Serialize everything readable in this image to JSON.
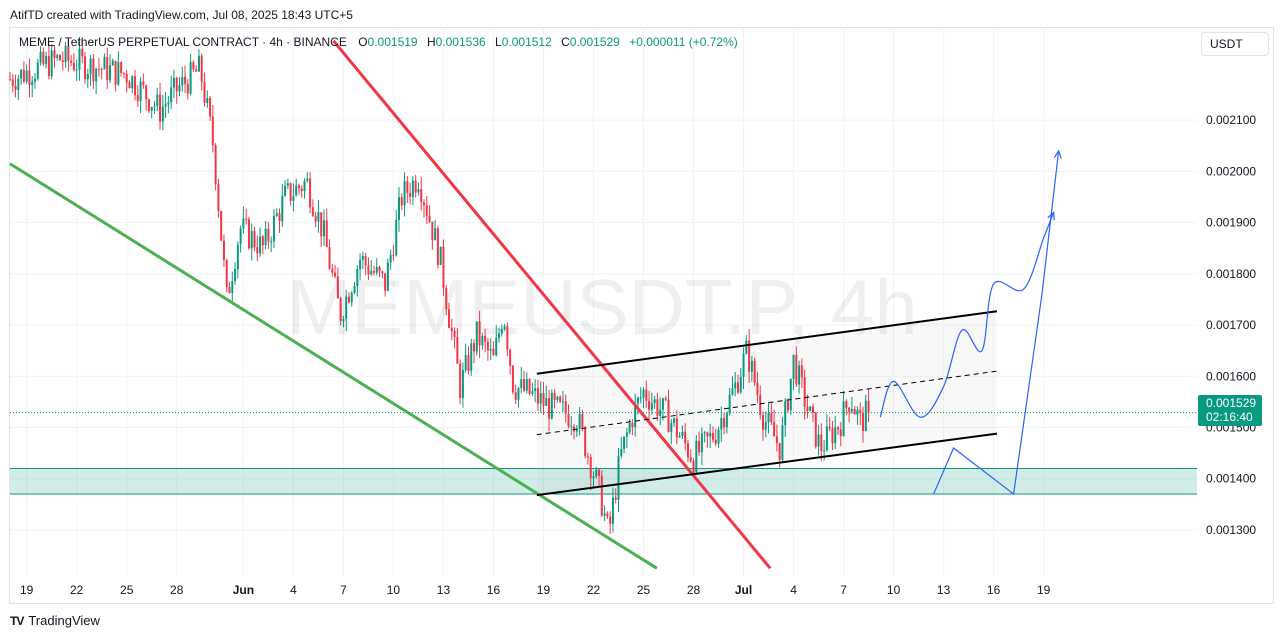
{
  "header": {
    "credit": "AtifTD created with TradingView.com, Jul 08, 2025 18:43 UTC+5"
  },
  "legend": {
    "symbol": "MEME / TetherUS PERPETUAL CONTRACT · 4h · BINANCE",
    "o_label": "O",
    "o_value": "0.001519",
    "h_label": "H",
    "h_value": "0.001536",
    "l_label": "L",
    "l_value": "0.001512",
    "c_label": "C",
    "c_value": "0.001529",
    "change": "+0.000011 (+0.72%)"
  },
  "currency_button": "USDT",
  "last_price": {
    "price": "0.001529",
    "countdown": "02:16:40"
  },
  "watermark": "MEMEUSDT.P, 4h",
  "footer": {
    "brand": "TradingView",
    "logo": "TV"
  },
  "colors": {
    "up": "#089981",
    "down": "#f23645",
    "green_line": "#4caf50",
    "red_line": "#f23645",
    "projection": "#2962ff",
    "zone": "#089981"
  },
  "chart_data": {
    "type": "candlestick",
    "symbol": "MEMEUSDT.P",
    "interval": "4h",
    "ylim": [
      0.00121,
      0.00228
    ],
    "y_ticks": [
      "0.001300",
      "0.001400",
      "0.001500",
      "0.001600",
      "0.001700",
      "0.001800",
      "0.001900",
      "0.002000",
      "0.002100"
    ],
    "y_tick_values": [
      0.0013,
      0.0014,
      0.0015,
      0.0016,
      0.0017,
      0.0018,
      0.0019,
      0.002,
      0.0021
    ],
    "x_range_days": [
      -1.0,
      70.2
    ],
    "x_ticks": [
      {
        "label": "19",
        "day": 0
      },
      {
        "label": "22",
        "day": 3
      },
      {
        "label": "25",
        "day": 6
      },
      {
        "label": "28",
        "day": 9
      },
      {
        "label": "Jun",
        "day": 13,
        "bold": true
      },
      {
        "label": "4",
        "day": 16
      },
      {
        "label": "7",
        "day": 19
      },
      {
        "label": "10",
        "day": 22
      },
      {
        "label": "13",
        "day": 25
      },
      {
        "label": "16",
        "day": 28
      },
      {
        "label": "19",
        "day": 31
      },
      {
        "label": "22",
        "day": 34
      },
      {
        "label": "25",
        "day": 37
      },
      {
        "label": "28",
        "day": 40
      },
      {
        "label": "Jul",
        "day": 43,
        "bold": true
      },
      {
        "label": "4",
        "day": 46
      },
      {
        "label": "7",
        "day": 49
      },
      {
        "label": "10",
        "day": 52
      },
      {
        "label": "13",
        "day": 55
      },
      {
        "label": "16",
        "day": 58
      },
      {
        "label": "19",
        "day": 61
      }
    ],
    "price_path": [
      [
        -1.0,
        0.00218
      ],
      [
        2.0,
        0.00222
      ],
      [
        6.0,
        0.00219
      ],
      [
        8.0,
        0.00212
      ],
      [
        9.0,
        0.00216
      ],
      [
        10.4,
        0.0022
      ],
      [
        11.2,
        0.00205
      ],
      [
        12.0,
        0.00175
      ],
      [
        12.8,
        0.00189
      ],
      [
        14.2,
        0.00185
      ],
      [
        15.5,
        0.00195
      ],
      [
        16.8,
        0.00198
      ],
      [
        17.8,
        0.00188
      ],
      [
        18.8,
        0.00172
      ],
      [
        20.0,
        0.00183
      ],
      [
        21.5,
        0.00178
      ],
      [
        22.5,
        0.00195
      ],
      [
        23.5,
        0.00199
      ],
      [
        24.8,
        0.00183
      ],
      [
        26.0,
        0.00158
      ],
      [
        27.0,
        0.00168
      ],
      [
        28.0,
        0.00163
      ],
      [
        28.6,
        0.00173
      ],
      [
        29.2,
        0.00158
      ],
      [
        30.0,
        0.00157
      ],
      [
        31.4,
        0.00154
      ],
      [
        33.0,
        0.00152
      ],
      [
        34.4,
        0.00137
      ],
      [
        34.9,
        0.00129
      ],
      [
        35.6,
        0.00144
      ],
      [
        36.3,
        0.00152
      ],
      [
        37.0,
        0.00157
      ],
      [
        38.5,
        0.00152
      ],
      [
        40.0,
        0.00144
      ],
      [
        41.3,
        0.00149
      ],
      [
        42.5,
        0.00158
      ],
      [
        43.2,
        0.00165
      ],
      [
        44.2,
        0.00152
      ],
      [
        45.2,
        0.00146
      ],
      [
        46.0,
        0.00163
      ],
      [
        46.8,
        0.00154
      ],
      [
        47.6,
        0.00146
      ],
      [
        48.8,
        0.00151
      ],
      [
        49.4,
        0.00156
      ],
      [
        50.0,
        0.00151
      ],
      [
        50.5,
        0.00153
      ]
    ],
    "last_price": 0.001529,
    "support_zone": [
      0.00137,
      0.00142
    ],
    "lines": {
      "green_trendline": [
        [
          -1.0,
          0.002015
        ],
        [
          37.8,
          0.001225
        ]
      ],
      "red_trendline": [
        [
          18.4,
          0.002255
        ],
        [
          44.6,
          0.001225
        ]
      ],
      "channel_upper": [
        [
          30.6,
          0.001605
        ],
        [
          58.2,
          0.001727
        ]
      ],
      "channel_lower": [
        [
          30.6,
          0.001368
        ],
        [
          58.2,
          0.001488
        ]
      ],
      "channel_mid": [
        [
          30.6,
          0.001486
        ],
        [
          58.2,
          0.00161
        ]
      ]
    },
    "projection_path": [
      [
        51.2,
        0.00152
      ],
      [
        52.0,
        0.00159
      ],
      [
        53.6,
        0.00152
      ],
      [
        55.0,
        0.00158
      ],
      [
        56.1,
        0.00169
      ],
      [
        57.3,
        0.00165
      ],
      [
        58.0,
        0.00178
      ],
      [
        59.8,
        0.00177
      ],
      [
        61.0,
        0.00187
      ],
      [
        61.6,
        0.00192
      ]
    ],
    "projection_arrow_path": [
      [
        54.4,
        0.00137
      ],
      [
        55.6,
        0.00146
      ],
      [
        59.2,
        0.00137
      ],
      [
        60.9,
        0.00176
      ],
      [
        61.9,
        0.00204
      ]
    ]
  }
}
